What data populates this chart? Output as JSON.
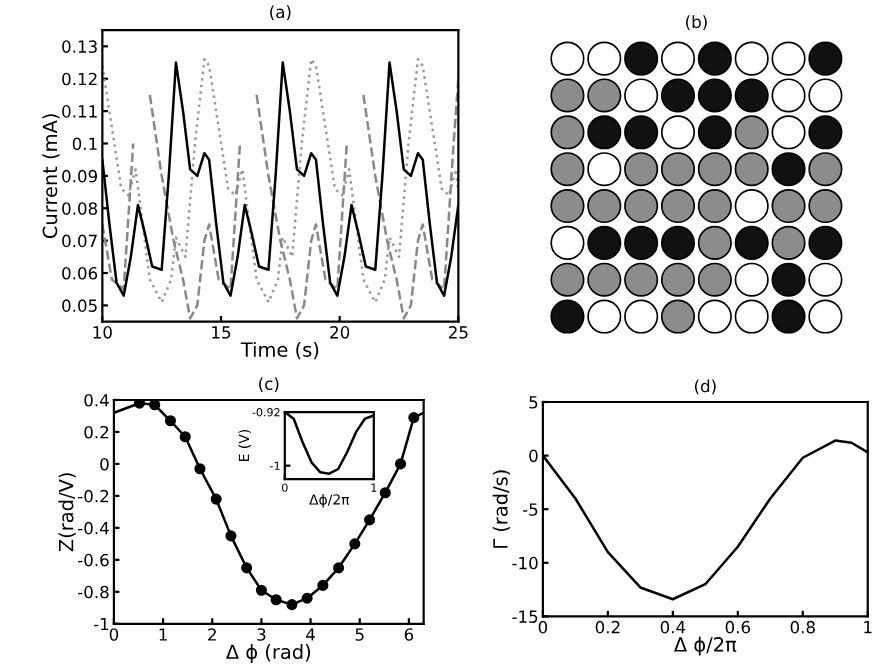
{
  "chart_data": [
    {
      "type": "line",
      "title": "(a)",
      "xlabel": "Time (s)",
      "ylabel": "Current (mA)",
      "xlim": [
        10,
        25
      ],
      "xticks": [
        10,
        15,
        20,
        25
      ],
      "ylim": [
        0.045,
        0.135
      ],
      "yticks": [
        0.05,
        0.06,
        0.07,
        0.08,
        0.09,
        0.1,
        0.11,
        0.12,
        0.13
      ],
      "grid": false,
      "legend": false,
      "series": [
        {
          "color": "#999999",
          "line_style": "dotted",
          "x": [
            10.0,
            10.4,
            10.8,
            11.1,
            11.4,
            11.7,
            12.0,
            12.5,
            12.9,
            13.1,
            13.5,
            13.9,
            14.3,
            14.5,
            14.9,
            15.3,
            15.6,
            15.9,
            16.2,
            16.5,
            17.0,
            17.4,
            17.6,
            18.0,
            18.4,
            18.8,
            19.0,
            19.4,
            19.8,
            20.1,
            20.4,
            20.7,
            21.0,
            21.5,
            21.9,
            22.1,
            22.5,
            22.9,
            23.3,
            23.5,
            23.9,
            24.3,
            24.6,
            24.9,
            25.0
          ],
          "values": [
            0.124,
            0.105,
            0.086,
            0.084,
            0.092,
            0.075,
            0.058,
            0.051,
            0.058,
            0.071,
            0.065,
            0.1,
            0.126,
            0.124,
            0.105,
            0.086,
            0.084,
            0.092,
            0.075,
            0.058,
            0.051,
            0.058,
            0.071,
            0.065,
            0.1,
            0.126,
            0.124,
            0.105,
            0.086,
            0.084,
            0.092,
            0.075,
            0.058,
            0.051,
            0.058,
            0.071,
            0.065,
            0.1,
            0.126,
            0.124,
            0.105,
            0.086,
            0.084,
            0.092,
            0.085
          ]
        },
        {
          "color": "#888888",
          "line_style": "dashed",
          "x": [
            10.0,
            10.4,
            10.9,
            11.3,
            11.6,
            12.0,
            12.5,
            13.0,
            13.4,
            13.7,
            14.0,
            14.3,
            14.5,
            14.9,
            15.4,
            15.8,
            16.1,
            16.5,
            17.0,
            17.5,
            17.9,
            18.2,
            18.5,
            18.8,
            19.0,
            19.4,
            19.9,
            20.3,
            20.6,
            21.0,
            21.5,
            22.0,
            22.4,
            22.7,
            23.0,
            23.3,
            23.5,
            23.9,
            24.4,
            24.8,
            25.0
          ],
          "values": [
            0.075,
            0.058,
            0.055,
            0.1,
            null,
            0.115,
            0.09,
            0.07,
            0.058,
            0.046,
            0.05,
            0.07,
            0.075,
            0.058,
            0.055,
            0.1,
            null,
            0.115,
            0.09,
            0.07,
            0.058,
            0.046,
            0.05,
            0.07,
            0.075,
            0.058,
            0.055,
            0.1,
            null,
            0.115,
            0.09,
            0.07,
            0.058,
            0.046,
            0.05,
            0.07,
            0.075,
            0.058,
            0.055,
            0.1,
            0.12
          ]
        },
        {
          "color": "#000000",
          "line_style": "solid",
          "x": [
            10.0,
            10.3,
            10.6,
            10.9,
            11.2,
            11.5,
            11.8,
            12.1,
            12.5,
            12.8,
            13.1,
            13.4,
            13.7,
            14.0,
            14.3,
            14.5,
            14.8,
            15.1,
            15.4,
            15.7,
            16.0,
            16.3,
            16.6,
            17.0,
            17.3,
            17.6,
            17.9,
            18.2,
            18.5,
            18.8,
            19.0,
            19.3,
            19.6,
            19.9,
            20.2,
            20.5,
            20.8,
            21.1,
            21.5,
            21.8,
            22.1,
            22.4,
            22.7,
            23.0,
            23.3,
            23.5,
            23.8,
            24.1,
            24.4,
            24.7,
            25.0
          ],
          "values": [
            0.095,
            0.075,
            0.057,
            0.053,
            0.065,
            0.081,
            0.072,
            0.062,
            0.061,
            0.09,
            0.125,
            0.11,
            0.092,
            0.09,
            0.097,
            0.095,
            0.075,
            0.057,
            0.053,
            0.065,
            0.081,
            0.072,
            0.062,
            0.061,
            0.09,
            0.125,
            0.11,
            0.092,
            0.09,
            0.097,
            0.095,
            0.075,
            0.057,
            0.053,
            0.065,
            0.081,
            0.072,
            0.062,
            0.061,
            0.09,
            0.125,
            0.11,
            0.092,
            0.09,
            0.097,
            0.095,
            0.075,
            0.057,
            0.053,
            0.065,
            0.081
          ]
        }
      ]
    },
    {
      "type": "other",
      "title": "(b)"
    },
    {
      "type": "line",
      "title": "(c)",
      "xlabel": "Δ ϕ (rad)",
      "ylabel": "Z(rad/V)",
      "xlim": [
        0,
        6.3
      ],
      "xticks": [
        0,
        1,
        2,
        3,
        4,
        5,
        6
      ],
      "ylim": [
        -1,
        0.4
      ],
      "yticks": [
        -1,
        -0.8,
        -0.6,
        -0.4,
        -0.2,
        0,
        0.2,
        0.4
      ],
      "grid": false,
      "legend": false,
      "marker": "circle",
      "series": [
        {
          "color": "#000000",
          "line_style": "solid",
          "x": [
            0.52,
            0.83,
            1.15,
            1.45,
            1.75,
            2.08,
            2.38,
            2.7,
            3.0,
            3.3,
            3.62,
            3.93,
            4.25,
            4.57,
            4.9,
            5.2,
            5.52,
            5.83,
            6.1
          ],
          "values": [
            0.38,
            0.37,
            0.27,
            0.17,
            -0.03,
            -0.22,
            -0.45,
            -0.65,
            -0.79,
            -0.85,
            -0.88,
            -0.84,
            -0.76,
            -0.65,
            -0.5,
            -0.35,
            -0.18,
            0.0,
            0.29
          ]
        },
        {
          "color": "#000000",
          "line_style": "solid",
          "marker": "none",
          "x": [
            0,
            0.52
          ],
          "values": [
            0.32,
            0.38
          ]
        },
        {
          "color": "#000000",
          "line_style": "solid",
          "marker": "none",
          "x": [
            6.1,
            6.3
          ],
          "values": [
            0.29,
            0.32
          ]
        }
      ]
    },
    {
      "type": "line",
      "xlabel": "Δϕ/2π",
      "ylabel": "E (V)",
      "xlim": [
        0,
        1
      ],
      "xticks": [
        0,
        1
      ],
      "ylim": [
        -1.02,
        -0.92
      ],
      "yticks": [
        -1,
        -0.92
      ],
      "grid": false,
      "legend": false,
      "series": [
        {
          "color": "#000000",
          "line_style": "solid",
          "x": [
            0,
            0.1,
            0.2,
            0.3,
            0.4,
            0.5,
            0.6,
            0.7,
            0.8,
            0.9,
            1.0
          ],
          "values": [
            -0.92,
            -0.93,
            -0.965,
            -0.995,
            -1.01,
            -1.012,
            -1.005,
            -0.98,
            -0.95,
            -0.93,
            -0.925
          ]
        }
      ]
    },
    {
      "type": "line",
      "title": "(d)",
      "xlabel": "Δ ϕ/2π",
      "ylabel": "Γ (rad/s)",
      "xlim": [
        0,
        1
      ],
      "xticks": [
        0,
        0.2,
        0.4,
        0.6,
        0.8,
        1
      ],
      "ylim": [
        -15,
        5
      ],
      "yticks": [
        -15,
        -10,
        -5,
        0,
        5
      ],
      "grid": false,
      "legend": false,
      "series": [
        {
          "color": "#000000",
          "line_style": "solid",
          "x": [
            0,
            0.1,
            0.2,
            0.3,
            0.4,
            0.5,
            0.6,
            0.7,
            0.8,
            0.9,
            0.95,
            1.0
          ],
          "values": [
            0,
            -4,
            -9,
            -12.3,
            -13.4,
            -12,
            -8.5,
            -4,
            -0.2,
            1.4,
            1.2,
            0.3
          ]
        }
      ]
    }
  ]
}
